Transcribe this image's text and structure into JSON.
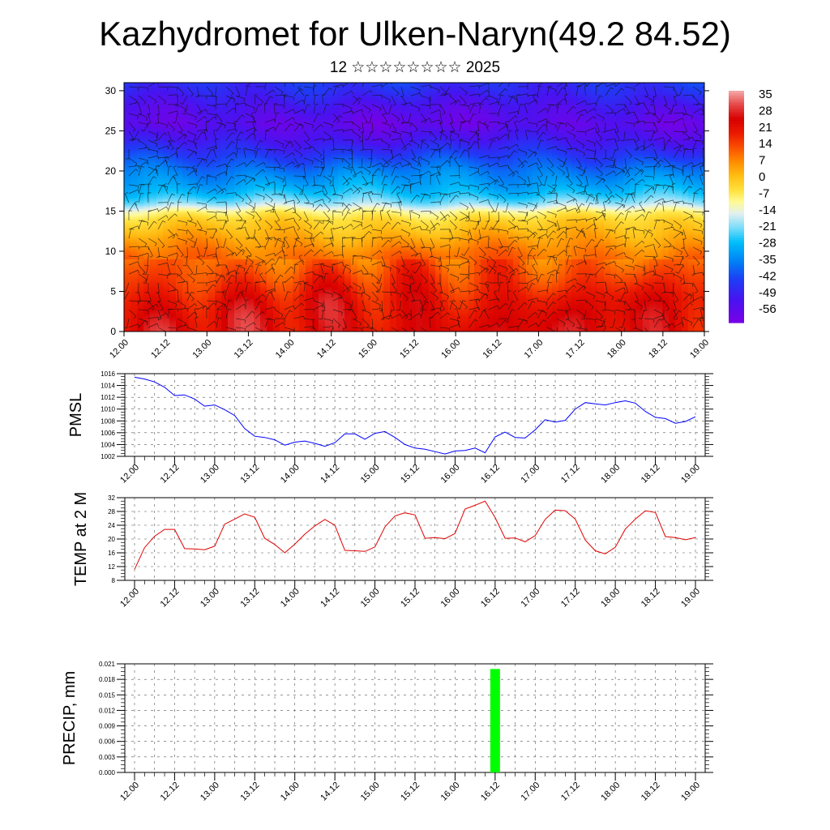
{
  "header": {
    "title": "Kazhydromet for Ulken-Naryn(49.2 84.52)",
    "subtitle": "12 ☆☆☆☆☆☆☆☆ 2025"
  },
  "chart_data": [
    {
      "type": "heatmap",
      "title": "",
      "xlabel": "",
      "ylabel": "",
      "x_ticks": [
        "12.00",
        "12.12",
        "13.00",
        "13.12",
        "14.00",
        "14.12",
        "15.00",
        "15.12",
        "16.00",
        "16.12",
        "17.00",
        "17.12",
        "18.00",
        "18.12",
        "19.00"
      ],
      "y_ticks": [
        0,
        5,
        10,
        15,
        20,
        25,
        30
      ],
      "ylim": [
        0,
        31
      ],
      "colorbar": {
        "labels": [
          "35",
          "28",
          "21",
          "14",
          "7",
          "0",
          "-7",
          "-14",
          "-21",
          "-28",
          "-35",
          "-42",
          "-49",
          "-56"
        ],
        "range": [
          -60,
          38
        ]
      },
      "level_temperature_profile": {
        "levels": [
          0,
          2,
          4,
          6,
          8,
          10,
          12,
          14,
          15,
          16,
          17,
          18,
          20,
          22,
          24,
          26,
          28,
          30,
          31
        ],
        "temperature": [
          25,
          24,
          22,
          18,
          14,
          10,
          4,
          -2,
          -8,
          -18,
          -24,
          -28,
          -34,
          -42,
          -50,
          -56,
          -52,
          -46,
          -44
        ]
      },
      "wind_barbs": "dense black wind barbs overlay"
    },
    {
      "type": "line",
      "ylabel": "PMSL",
      "x_ticks": [
        "12.00",
        "12.12",
        "13.00",
        "13.12",
        "14.00",
        "14.12",
        "15.00",
        "15.12",
        "16.00",
        "16.12",
        "17.00",
        "17.12",
        "18.00",
        "18.12",
        "19.00"
      ],
      "y_ticks": [
        1002,
        1004,
        1006,
        1008,
        1010,
        1012,
        1014,
        1016
      ],
      "ylim": [
        1002,
        1016
      ],
      "color": "#0000ff",
      "series": [
        {
          "values": [
            1015.4,
            1015.1,
            1014.6,
            1013.7,
            1012.3,
            1012.4,
            1011.7,
            1010.5,
            1010.7,
            1009.9,
            1008.9,
            1006.7,
            1005.4,
            1005.2,
            1004.8,
            1003.9,
            1004.4,
            1004.6,
            1004.2,
            1003.7,
            1004.3,
            1005.8,
            1005.8,
            1004.9,
            1005.9,
            1006.2,
            1005.2,
            1004.0,
            1003.4,
            1003.2,
            1002.8,
            1002.4,
            1002.9,
            1003.0,
            1003.4,
            1002.6,
            1005.3,
            1006.1,
            1005.2,
            1005.1,
            1006.5,
            1008.2,
            1007.8,
            1008.1,
            1010.0,
            1011.1,
            1010.9,
            1010.7,
            1011.1,
            1011.4,
            1011.0,
            1009.6,
            1008.6,
            1008.4,
            1007.6,
            1007.9,
            1008.7
          ]
        }
      ]
    },
    {
      "type": "line",
      "ylabel": "TEMP at 2 M",
      "x_ticks": [
        "12.00",
        "12.12",
        "13.00",
        "13.12",
        "14.00",
        "14.12",
        "15.00",
        "15.12",
        "16.00",
        "16.12",
        "17.00",
        "17.12",
        "18.00",
        "18.12",
        "19.00"
      ],
      "y_ticks": [
        8,
        12,
        16,
        20,
        24,
        28,
        32
      ],
      "ylim": [
        8,
        32
      ],
      "color": "#e00000",
      "series": [
        {
          "values": [
            11.2,
            17.5,
            20.8,
            22.8,
            22.8,
            17.2,
            17.1,
            16.9,
            17.9,
            24.3,
            25.8,
            27.3,
            26.3,
            20.2,
            18.4,
            16.0,
            18.5,
            21.4,
            23.8,
            25.7,
            24.0,
            16.7,
            16.6,
            16.4,
            17.7,
            23.5,
            26.7,
            27.6,
            27.0,
            20.2,
            20.4,
            20.1,
            21.6,
            28.7,
            29.8,
            31.0,
            26.2,
            20.2,
            20.3,
            19.2,
            21.0,
            25.7,
            28.4,
            28.2,
            25.8,
            19.7,
            16.6,
            15.7,
            17.6,
            22.9,
            25.8,
            28.2,
            27.7,
            20.7,
            20.4,
            19.8,
            20.4
          ]
        }
      ]
    },
    {
      "type": "bar",
      "ylabel": "PRECIP, mm",
      "x_ticks": [
        "12.00",
        "12.12",
        "13.00",
        "13.12",
        "14.00",
        "14.12",
        "15.00",
        "15.12",
        "16.00",
        "16.12",
        "17.00",
        "17.12",
        "18.00",
        "18.12",
        "19.00"
      ],
      "y_ticks": [
        "0.000",
        "0.003",
        "0.006",
        "0.009",
        "0.012",
        "0.015",
        "0.018",
        "0.021"
      ],
      "ylim": [
        0,
        0.021
      ],
      "color": "#00ff00",
      "bars": [
        {
          "step": 36,
          "value": 0.02
        }
      ]
    }
  ]
}
